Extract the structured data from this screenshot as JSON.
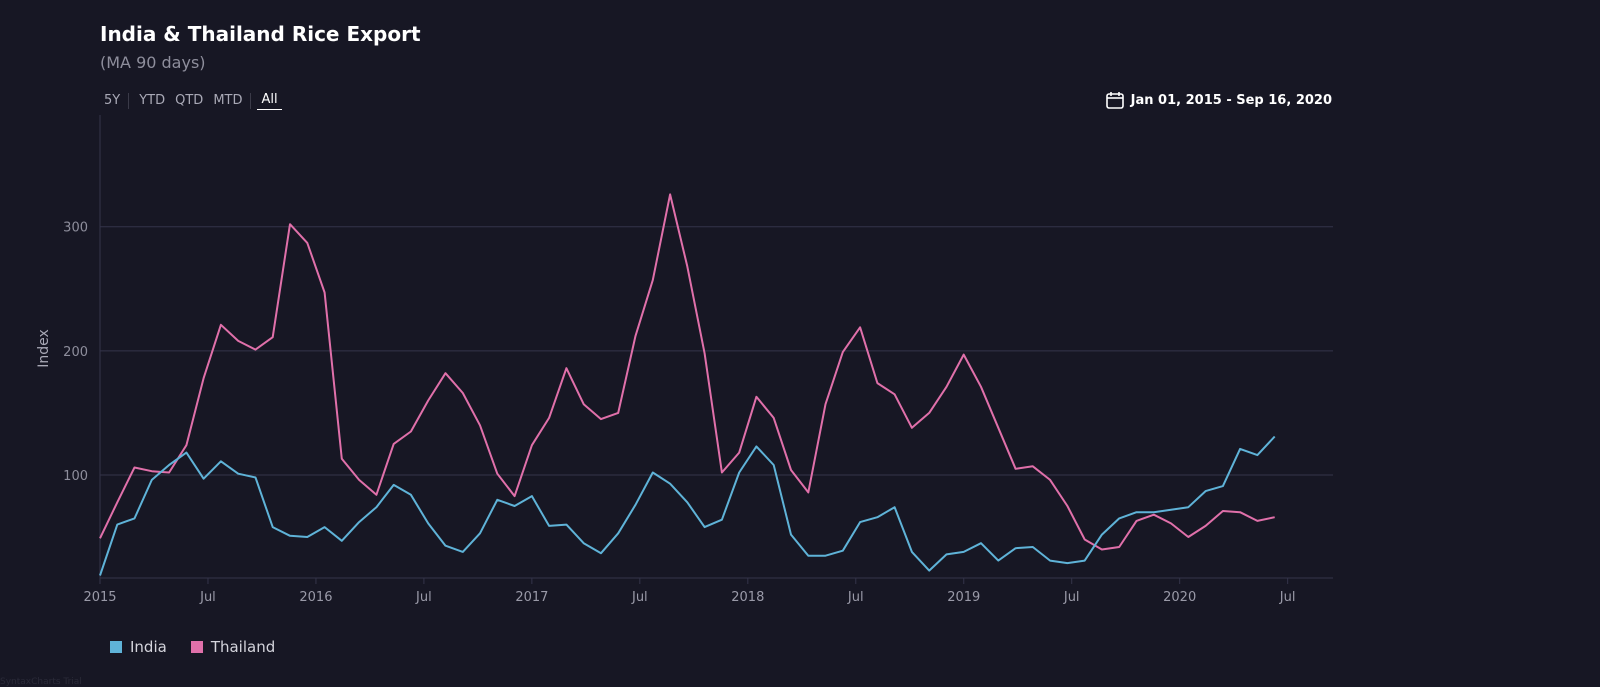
{
  "header": {
    "title": "India & Thailand Rice Export",
    "subtitle": "(MA 90 days)"
  },
  "range_tabs": [
    {
      "label": "5Y",
      "active": false
    },
    {
      "label": "YTD",
      "active": false
    },
    {
      "label": "QTD",
      "active": false
    },
    {
      "label": "MTD",
      "active": false
    },
    {
      "label": "All",
      "active": true
    }
  ],
  "date_range": {
    "label": "Jan 01, 2015 - Sep 16, 2020",
    "icon": "calendar-icon"
  },
  "colors": {
    "india": "#5fb3d8",
    "thailand": "#e070aa",
    "grid": "#34344a"
  },
  "credit": "SyntaxCharts Trial",
  "chart_data": {
    "type": "line",
    "title": "India & Thailand Rice Export",
    "subtitle": "(MA 90 days)",
    "ylabel": "Index",
    "xlabel": "",
    "ylim": [
      17,
      390
    ],
    "xlim": [
      2015.0,
      2020.71
    ],
    "yticks": [
      100,
      200,
      300
    ],
    "xticks": [
      {
        "x": 2015.0,
        "label": "2015"
      },
      {
        "x": 2015.5,
        "label": "Jul"
      },
      {
        "x": 2016.0,
        "label": "2016"
      },
      {
        "x": 2016.5,
        "label": "Jul"
      },
      {
        "x": 2017.0,
        "label": "2017"
      },
      {
        "x": 2017.5,
        "label": "Jul"
      },
      {
        "x": 2018.0,
        "label": "2018"
      },
      {
        "x": 2018.5,
        "label": "Jul"
      },
      {
        "x": 2019.0,
        "label": "2019"
      },
      {
        "x": 2019.5,
        "label": "Jul"
      },
      {
        "x": 2020.0,
        "label": "2020"
      },
      {
        "x": 2020.5,
        "label": "Jul"
      }
    ],
    "x": [
      2015.0,
      2015.08,
      2015.16,
      2015.24,
      2015.32,
      2015.4,
      2015.48,
      2015.56,
      2015.64,
      2015.72,
      2015.8,
      2015.88,
      2015.96,
      2016.04,
      2016.12,
      2016.2,
      2016.28,
      2016.36,
      2016.44,
      2016.52,
      2016.6,
      2016.68,
      2016.76,
      2016.84,
      2016.92,
      2017.0,
      2017.08,
      2017.16,
      2017.24,
      2017.32,
      2017.4,
      2017.48,
      2017.56,
      2017.64,
      2017.72,
      2017.8,
      2017.88,
      2017.96,
      2018.04,
      2018.12,
      2018.2,
      2018.28,
      2018.36,
      2018.44,
      2018.52,
      2018.6,
      2018.68,
      2018.76,
      2018.84,
      2018.92,
      2019.0,
      2019.08,
      2019.16,
      2019.24,
      2019.32,
      2019.4,
      2019.48,
      2019.56,
      2019.64,
      2019.72,
      2019.8,
      2019.88,
      2019.96,
      2020.04,
      2020.12,
      2020.2,
      2020.28,
      2020.36,
      2020.44,
      2020.52,
      2020.6,
      2020.68
    ],
    "series": [
      {
        "name": "India",
        "values": [
          19,
          60,
          65,
          96,
          108,
          118,
          97,
          111,
          101,
          98,
          58,
          51,
          50,
          58,
          47,
          62,
          74,
          92,
          84,
          61,
          43,
          38,
          53,
          80,
          75,
          83,
          59,
          60,
          45,
          37,
          53,
          76,
          102,
          93,
          78,
          58,
          64,
          102,
          123,
          108,
          52,
          35,
          35,
          39,
          62,
          66,
          74,
          38,
          23,
          36,
          38,
          45,
          31,
          41,
          42,
          31,
          29,
          31,
          52,
          65,
          70,
          70,
          72,
          74,
          87,
          91,
          121,
          116,
          131,
          null,
          null,
          null
        ]
      },
      {
        "name": "Thailand",
        "values": [
          49,
          78,
          106,
          103,
          102,
          124,
          178,
          221,
          208,
          201,
          211,
          302,
          287,
          247,
          113,
          96,
          84,
          125,
          135,
          160,
          182,
          166,
          140,
          101,
          83,
          124,
          146,
          186,
          157,
          145,
          150,
          212,
          257,
          326,
          268,
          198,
          102,
          118,
          163,
          146,
          104,
          86,
          157,
          199,
          219,
          174,
          165,
          138,
          150,
          171,
          197,
          171,
          138,
          105,
          107,
          96,
          75,
          48,
          40,
          42,
          63,
          68,
          61,
          50,
          59,
          71,
          70,
          63,
          66,
          null,
          null,
          null
        ]
      }
    ]
  }
}
